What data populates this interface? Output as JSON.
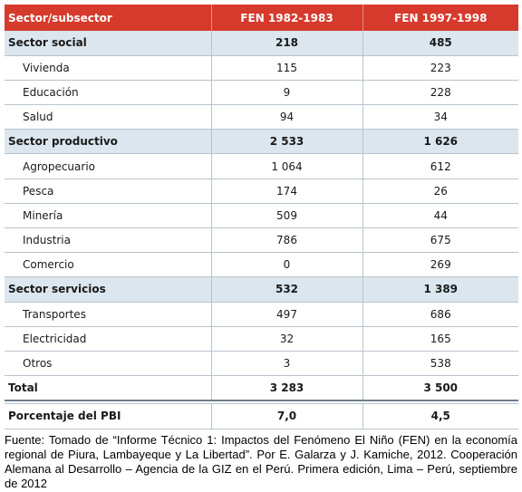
{
  "table": {
    "headers": [
      "Sector/subsector",
      "FEN 1982-1983",
      "FEN 1997-1998"
    ],
    "rows": [
      {
        "type": "group",
        "label": "Sector social",
        "v1": "218",
        "v2": "485"
      },
      {
        "type": "sub",
        "label": "Vivienda",
        "v1": "115",
        "v2": "223"
      },
      {
        "type": "sub",
        "label": "Educación",
        "v1": "9",
        "v2": "228"
      },
      {
        "type": "sub",
        "label": "Salud",
        "v1": "94",
        "v2": "34"
      },
      {
        "type": "group",
        "label": "Sector productivo",
        "v1": "2 533",
        "v2": "1 626"
      },
      {
        "type": "sub",
        "label": "Agropecuario",
        "v1": "1 064",
        "v2": "612"
      },
      {
        "type": "sub",
        "label": "Pesca",
        "v1": "174",
        "v2": "26"
      },
      {
        "type": "sub",
        "label": "Minería",
        "v1": "509",
        "v2": "44"
      },
      {
        "type": "sub",
        "label": "Industria",
        "v1": "786",
        "v2": "675"
      },
      {
        "type": "sub",
        "label": "Comercio",
        "v1": "0",
        "v2": "269"
      },
      {
        "type": "group",
        "label": "Sector servicios",
        "v1": "532",
        "v2": "1 389"
      },
      {
        "type": "sub",
        "label": "Transportes",
        "v1": "497",
        "v2": "686"
      },
      {
        "type": "sub",
        "label": "Electricidad",
        "v1": "32",
        "v2": "165"
      },
      {
        "type": "sub",
        "label": "Otros",
        "v1": "3",
        "v2": "538"
      },
      {
        "type": "total",
        "label": "Total",
        "v1": "3 283",
        "v2": "3 500"
      },
      {
        "type": "pbi",
        "label": "Porcentaje del PBI",
        "v1": "7,0",
        "v2": "4,5"
      }
    ]
  },
  "source": "Fuente: Tomado de “Informe Técnico 1: Impactos del Fenómeno El Niño (FEN) en la economía regional de Piura, Lambayeque y La Libertad”. Por E. Galarza y J. Kamiche, 2012. Cooperación Alemana al Desarrollo – Agencia de la GIZ en el Perú. Primera edición, Lima – Perú, septiembre de 2012",
  "colors": {
    "header_bg": "#d63a2c",
    "group_bg": "#dbe6ee",
    "rule": "#b9c3cc"
  }
}
